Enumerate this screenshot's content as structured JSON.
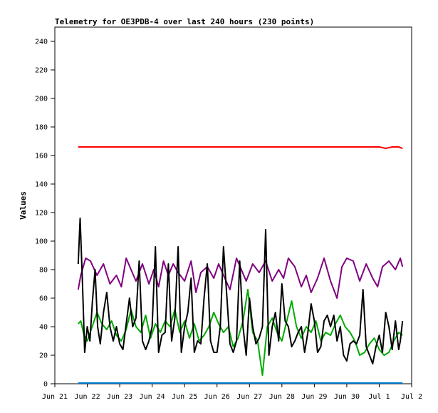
{
  "chart_data": {
    "type": "line",
    "title": "Telemetry for OE3PDB-4 over last 240 hours (230 points)",
    "ylabel": "Values",
    "xlabel": "",
    "ylim": [
      0,
      250
    ],
    "yticks": [
      0,
      20,
      40,
      60,
      80,
      100,
      120,
      140,
      160,
      180,
      200,
      220,
      240
    ],
    "x_tick_labels": [
      "Jun 21",
      "Jun 22",
      "Jun 23",
      "Jun 24",
      "Jun 25",
      "Jun 26",
      "Jun 27",
      "Jun 28",
      "Jun 29",
      "Jun 30",
      "Jul 1",
      "Jul 2"
    ],
    "x_range_days": [
      0,
      11
    ],
    "grid": false,
    "legend": "none",
    "series": [
      {
        "color": "#ff0000",
        "x": [
          0.72,
          10.0,
          10.2,
          10.4,
          10.6,
          10.72
        ],
        "y": [
          166,
          166,
          165,
          166,
          166,
          165
        ]
      },
      {
        "color": "#800080",
        "x": [
          0.72,
          0.8,
          0.95,
          1.1,
          1.3,
          1.5,
          1.7,
          1.9,
          2.05,
          2.2,
          2.35,
          2.5,
          2.7,
          2.9,
          3.05,
          3.2,
          3.35,
          3.5,
          3.65,
          3.8,
          4.0,
          4.2,
          4.35,
          4.5,
          4.7,
          4.9,
          5.05,
          5.2,
          5.4,
          5.6,
          5.75,
          5.9,
          6.1,
          6.3,
          6.5,
          6.7,
          6.9,
          7.05,
          7.2,
          7.4,
          7.6,
          7.75,
          7.9,
          8.1,
          8.3,
          8.5,
          8.7,
          8.85,
          9.0,
          9.2,
          9.4,
          9.6,
          9.8,
          9.95,
          10.1,
          10.3,
          10.5,
          10.65,
          10.72
        ],
        "y": [
          66,
          76,
          88,
          86,
          76,
          84,
          70,
          76,
          68,
          88,
          80,
          72,
          84,
          70,
          80,
          68,
          86,
          76,
          84,
          78,
          72,
          86,
          64,
          78,
          82,
          74,
          84,
          76,
          66,
          88,
          80,
          72,
          84,
          78,
          86,
          72,
          80,
          74,
          88,
          82,
          68,
          76,
          64,
          74,
          88,
          72,
          60,
          82,
          88,
          86,
          72,
          84,
          74,
          68,
          82,
          86,
          80,
          88,
          82
        ]
      },
      {
        "color": "#00aa00",
        "x": [
          0.72,
          0.8,
          0.9,
          1.0,
          1.15,
          1.3,
          1.45,
          1.6,
          1.75,
          1.9,
          2.05,
          2.2,
          2.35,
          2.5,
          2.65,
          2.8,
          2.95,
          3.1,
          3.25,
          3.4,
          3.55,
          3.7,
          3.85,
          4.0,
          4.15,
          4.3,
          4.45,
          4.6,
          4.75,
          4.9,
          5.05,
          5.2,
          5.35,
          5.5,
          5.65,
          5.8,
          5.95,
          6.1,
          6.25,
          6.4,
          6.55,
          6.7,
          6.85,
          7.0,
          7.15,
          7.3,
          7.45,
          7.6,
          7.75,
          7.9,
          8.05,
          8.2,
          8.35,
          8.5,
          8.65,
          8.8,
          8.95,
          9.1,
          9.25,
          9.4,
          9.55,
          9.7,
          9.85,
          10.0,
          10.15,
          10.3,
          10.45,
          10.6,
          10.72
        ],
        "y": [
          42,
          44,
          34,
          30,
          40,
          50,
          42,
          38,
          44,
          34,
          30,
          38,
          52,
          40,
          36,
          48,
          32,
          42,
          36,
          44,
          40,
          52,
          36,
          44,
          32,
          42,
          30,
          34,
          40,
          50,
          42,
          36,
          40,
          26,
          32,
          44,
          66,
          36,
          30,
          6,
          40,
          46,
          36,
          30,
          44,
          58,
          40,
          32,
          40,
          36,
          44,
          30,
          36,
          34,
          42,
          48,
          40,
          36,
          30,
          20,
          22,
          28,
          32,
          24,
          20,
          22,
          30,
          36,
          34
        ]
      },
      {
        "color": "#000000",
        "x": [
          0.72,
          0.78,
          0.85,
          0.92,
          1.0,
          1.08,
          1.16,
          1.24,
          1.32,
          1.4,
          1.5,
          1.6,
          1.7,
          1.8,
          1.9,
          2.0,
          2.1,
          2.2,
          2.3,
          2.4,
          2.5,
          2.6,
          2.7,
          2.8,
          2.9,
          3.0,
          3.1,
          3.2,
          3.3,
          3.4,
          3.5,
          3.6,
          3.7,
          3.8,
          3.9,
          4.0,
          4.1,
          4.2,
          4.3,
          4.4,
          4.5,
          4.6,
          4.7,
          4.8,
          4.9,
          5.0,
          5.1,
          5.2,
          5.3,
          5.4,
          5.5,
          5.6,
          5.7,
          5.8,
          5.9,
          6.0,
          6.1,
          6.2,
          6.3,
          6.4,
          6.5,
          6.6,
          6.7,
          6.8,
          6.9,
          7.0,
          7.1,
          7.2,
          7.3,
          7.4,
          7.5,
          7.6,
          7.7,
          7.8,
          7.9,
          8.0,
          8.1,
          8.2,
          8.3,
          8.4,
          8.5,
          8.6,
          8.7,
          8.8,
          8.9,
          9.0,
          9.1,
          9.2,
          9.3,
          9.4,
          9.5,
          9.6,
          9.7,
          9.8,
          9.9,
          10.0,
          10.1,
          10.2,
          10.3,
          10.4,
          10.5,
          10.6,
          10.65,
          10.72
        ],
        "y": [
          84,
          116,
          72,
          22,
          40,
          30,
          58,
          80,
          40,
          28,
          50,
          64,
          40,
          30,
          40,
          28,
          24,
          42,
          60,
          40,
          46,
          86,
          30,
          24,
          30,
          40,
          96,
          22,
          34,
          36,
          84,
          30,
          46,
          96,
          22,
          40,
          50,
          74,
          22,
          30,
          28,
          60,
          84,
          30,
          22,
          22,
          40,
          96,
          62,
          28,
          22,
          30,
          86,
          40,
          20,
          60,
          40,
          28,
          32,
          40,
          108,
          20,
          40,
          50,
          30,
          70,
          44,
          40,
          26,
          30,
          36,
          40,
          22,
          36,
          56,
          44,
          22,
          26,
          44,
          48,
          40,
          48,
          30,
          40,
          20,
          16,
          28,
          30,
          28,
          34,
          66,
          26,
          20,
          14,
          26,
          34,
          22,
          50,
          40,
          24,
          44,
          24,
          30,
          44
        ]
      },
      {
        "color": "#0077cc",
        "x": [
          0.72,
          10.72
        ],
        "y": [
          0.5,
          0.5
        ]
      }
    ]
  }
}
